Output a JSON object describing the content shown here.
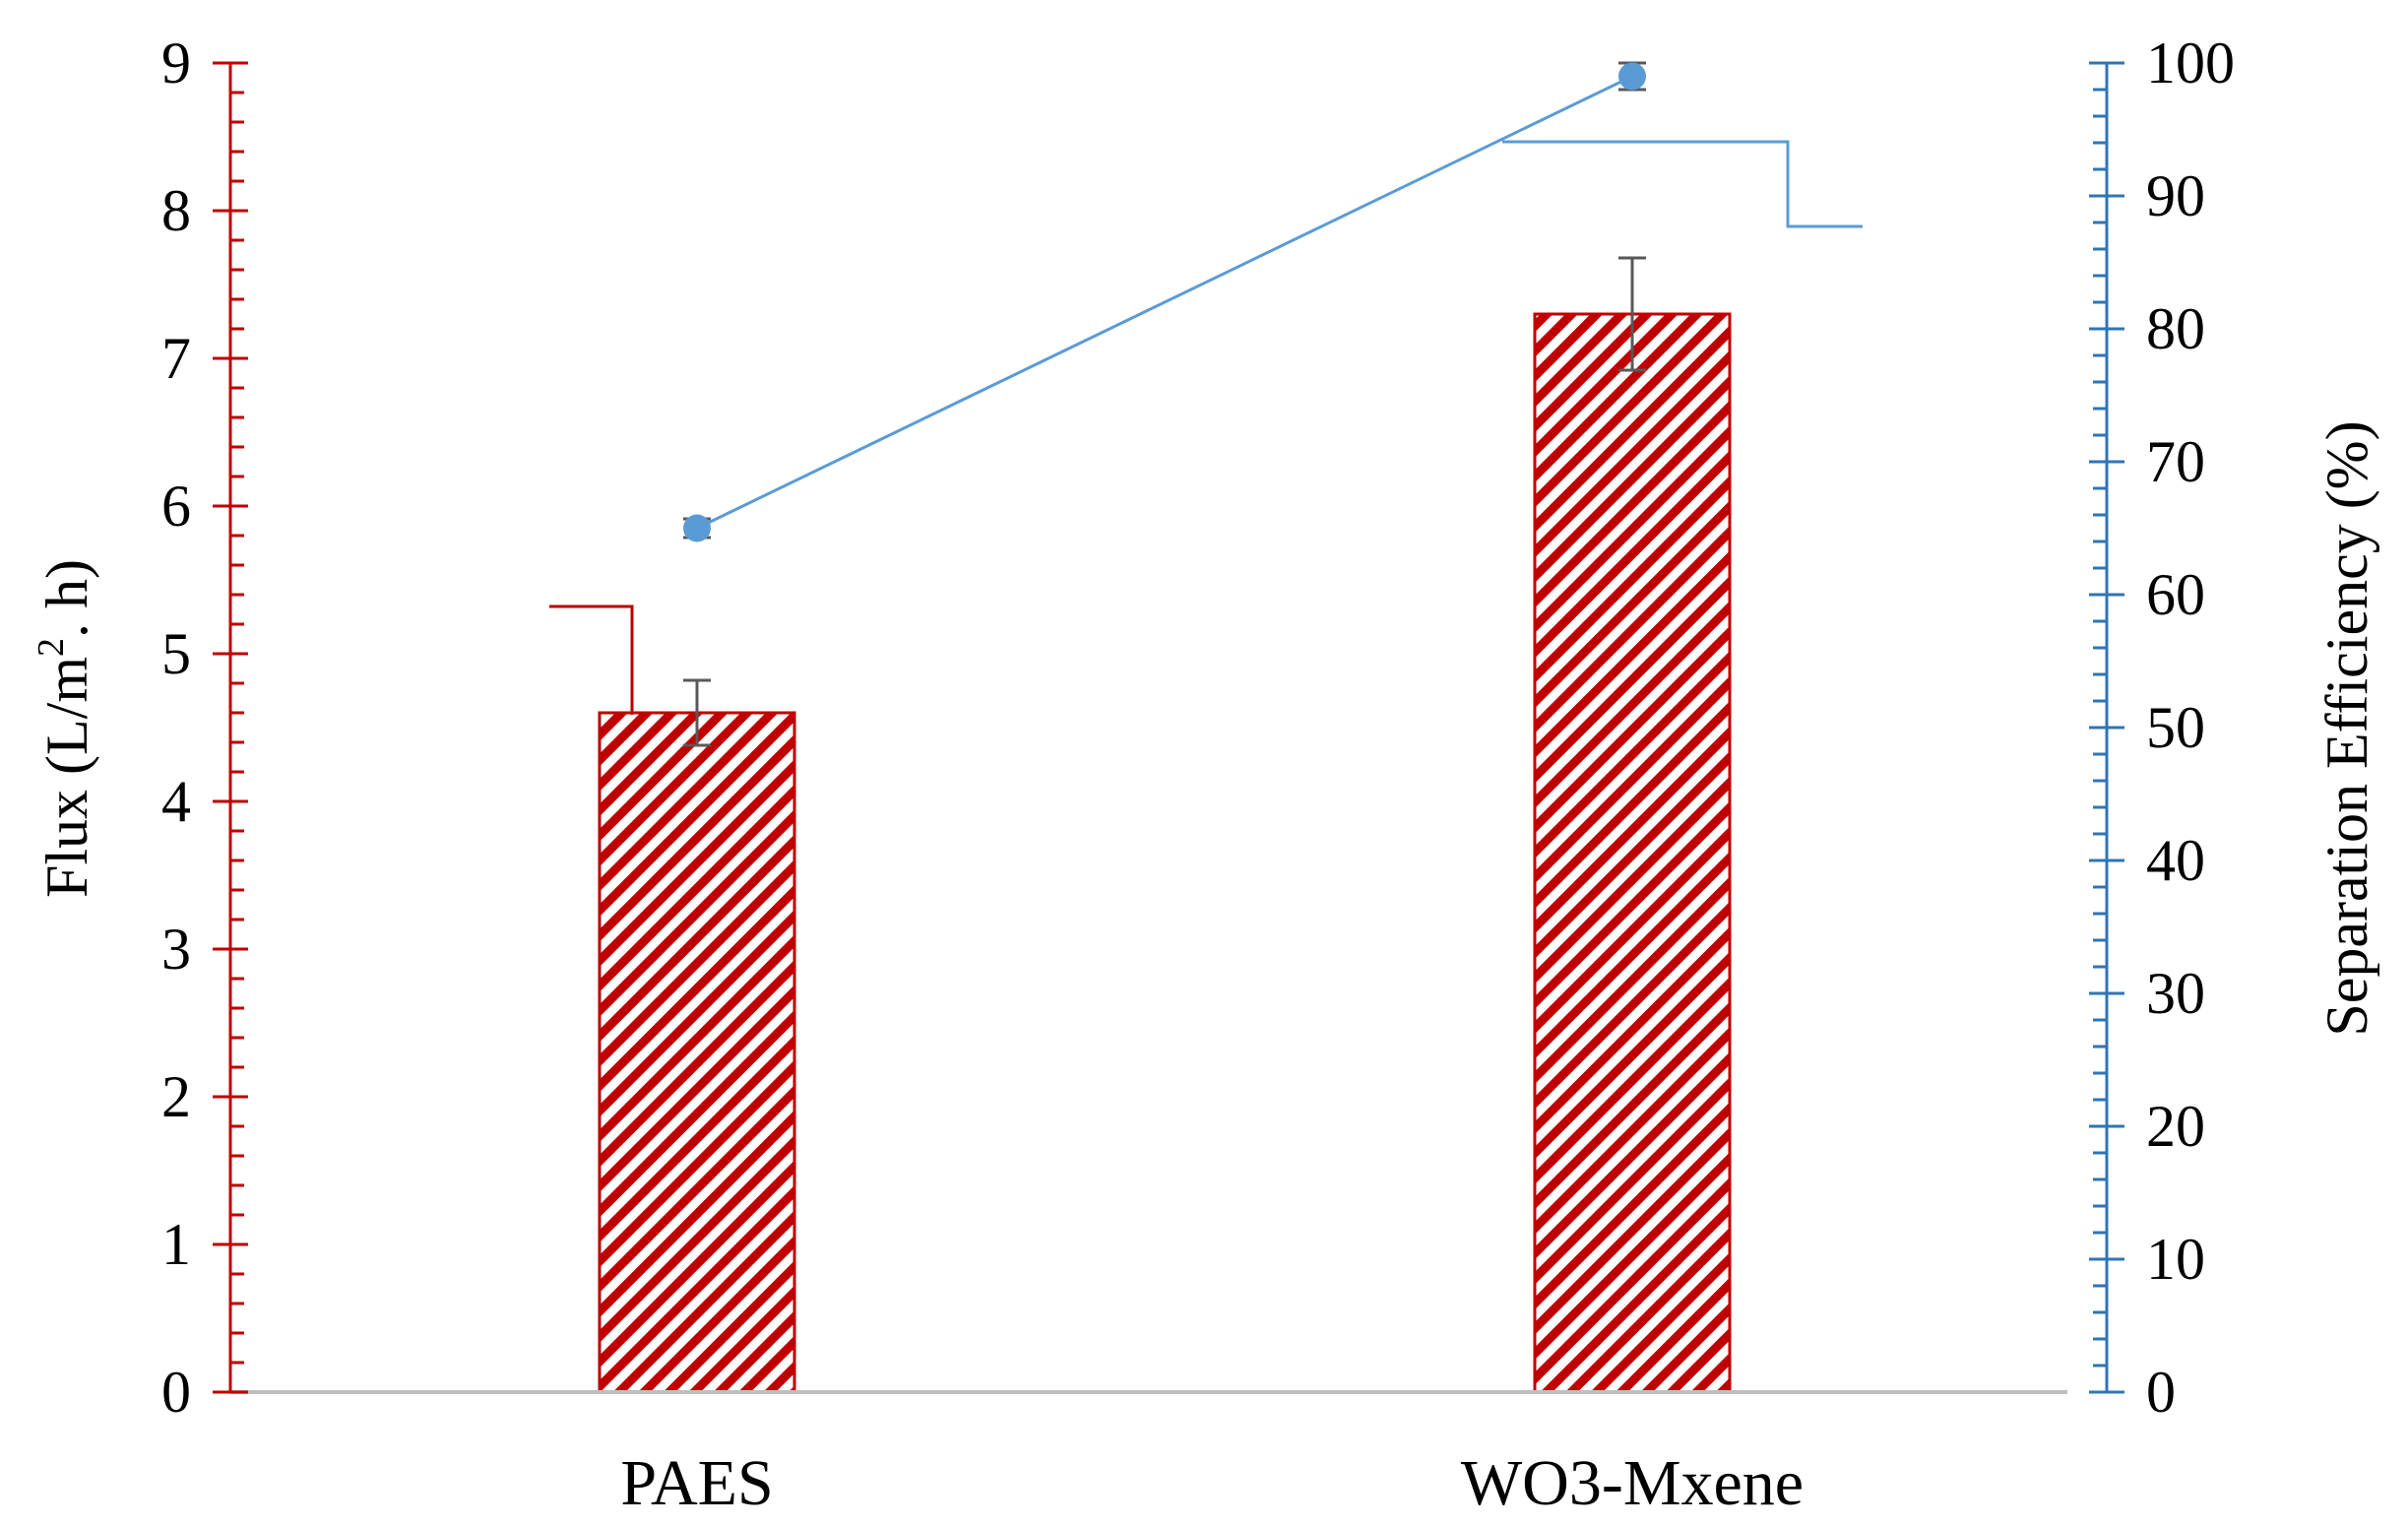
{
  "chart_data": {
    "type": "bar",
    "categories": [
      "PAES",
      "WO3-Mxene"
    ],
    "series": [
      {
        "type": "bar",
        "axis": "left",
        "values": [
          4.6,
          7.3
        ],
        "error": [
          0.22,
          0.38
        ]
      },
      {
        "type": "line",
        "axis": "right",
        "values": [
          65,
          99
        ],
        "error": [
          0.7,
          1.0
        ]
      }
    ],
    "y_left": {
      "label_pre": "Flux (L/m",
      "label_sup": "2",
      "label_post": ". h)",
      "ylim": [
        0,
        9
      ],
      "major_step": 1,
      "minor_step": 0.2
    },
    "y_right": {
      "label": "Separation Efficiency (%)",
      "ylim": [
        0,
        100
      ],
      "major_step": 10,
      "minor_step": 2
    },
    "colors": {
      "bar": "#c00000",
      "line": "#5b9bd5",
      "left_axis": "#c00000",
      "right_axis": "#2e75b6",
      "baseline": "#bfbfbf",
      "error_bar": "#595959"
    },
    "grid": false,
    "legend": "none"
  }
}
